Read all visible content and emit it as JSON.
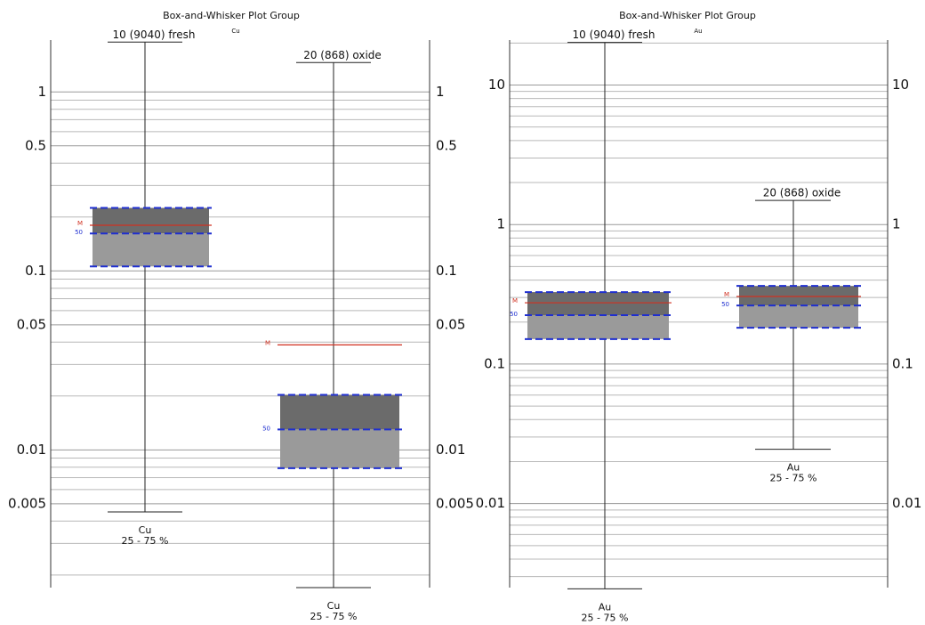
{
  "chart_data": [
    {
      "type": "box",
      "title": "Box-and-Whisker Plot Group",
      "subtitle": "Cu",
      "log_scale": true,
      "grid": true,
      "ylim": [
        0.0017,
        1.95
      ],
      "yticks": [
        0.005,
        0.01,
        0.05,
        0.1,
        0.5,
        1
      ],
      "minor_yticks": [
        0.002,
        0.003,
        0.004,
        0.006,
        0.007,
        0.008,
        0.009,
        0.02,
        0.03,
        0.04,
        0.06,
        0.07,
        0.08,
        0.09,
        0.2,
        0.3,
        0.4,
        0.6,
        0.7,
        0.8,
        0.9
      ],
      "mean_label": "M",
      "median_label": "50",
      "upper_color": "#6b6b6b",
      "lower_color": "#9a9a9a",
      "quartile_color": "#1f2fd0",
      "mean_color": "#d03020",
      "series": [
        {
          "name": "10 (9040) fresh",
          "variable": "Cu",
          "range_label": "25 - 75 %",
          "max": 1.9,
          "q3": 0.225,
          "mean": 0.18,
          "median": 0.162,
          "q1": 0.106,
          "min": 0.0045
        },
        {
          "name": "20 (868) oxide",
          "variable": "Cu",
          "range_label": "25 - 75 %",
          "max": 1.46,
          "q3": 0.0203,
          "mean": 0.0386,
          "median": 0.013,
          "q1": 0.0079,
          "min": 0.0017
        }
      ]
    },
    {
      "type": "box",
      "title": "Box-and-Whisker Plot Group",
      "subtitle": "Au",
      "log_scale": true,
      "grid": true,
      "ylim": [
        0.0025,
        21
      ],
      "yticks": [
        0.01,
        0.1,
        1,
        10
      ],
      "minor_yticks": [
        0.003,
        0.004,
        0.005,
        0.006,
        0.007,
        0.008,
        0.009,
        0.02,
        0.03,
        0.04,
        0.05,
        0.06,
        0.07,
        0.08,
        0.09,
        0.2,
        0.3,
        0.4,
        0.5,
        0.6,
        0.7,
        0.8,
        0.9,
        2,
        3,
        4,
        5,
        6,
        7,
        8,
        9,
        20
      ],
      "mean_label": "M",
      "median_label": "50",
      "upper_color": "#6b6b6b",
      "lower_color": "#9a9a9a",
      "quartile_color": "#1f2fd0",
      "mean_color": "#d03020",
      "series": [
        {
          "name": "10 (9040) fresh",
          "variable": "Au",
          "range_label": "25 - 75 %",
          "max": 20.2,
          "q3": 0.328,
          "mean": 0.275,
          "median": 0.224,
          "q1": 0.151,
          "min": 0.00245
        },
        {
          "name": "20 (868) oxide",
          "variable": "Au",
          "range_label": "25 - 75 %",
          "max": 1.49,
          "q3": 0.363,
          "mean": 0.305,
          "median": 0.263,
          "q1": 0.182,
          "min": 0.0245
        }
      ]
    }
  ]
}
